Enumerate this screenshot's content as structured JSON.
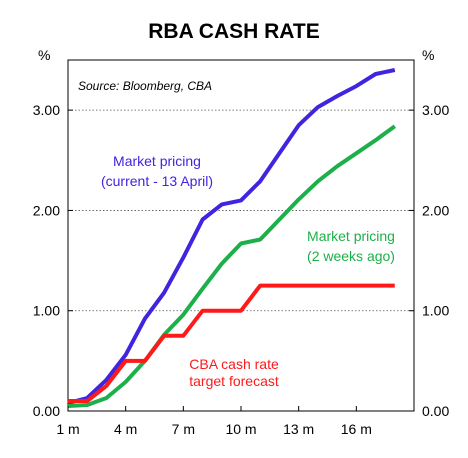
{
  "chart_data": {
    "type": "line",
    "title": "RBA CASH RATE",
    "source": "Source: Bloomberg, CBA",
    "y_unit_left": "%",
    "y_unit_right": "%",
    "ylim": [
      0,
      3.5
    ],
    "yticks": [
      0,
      1,
      2,
      3
    ],
    "ytick_labels": [
      "0.00",
      "1.00",
      "2.00",
      "3.00"
    ],
    "xlim": [
      1,
      19
    ],
    "xticks": [
      1,
      4,
      7,
      10,
      13,
      16
    ],
    "xtick_labels": [
      "1 m",
      "4 m",
      "7 m",
      "10 m",
      "13 m",
      "16 m"
    ],
    "grid": "horizontal dotted",
    "series": [
      {
        "name": "Market pricing (current - 13 April)",
        "color": "#3f25e0",
        "x": [
          1,
          2,
          3,
          4,
          5,
          6,
          7,
          8,
          9,
          10,
          11,
          12,
          13,
          14,
          15,
          16,
          17,
          18
        ],
        "values": [
          0.08,
          0.13,
          0.31,
          0.56,
          0.92,
          1.18,
          1.53,
          1.91,
          2.06,
          2.1,
          2.29,
          2.57,
          2.85,
          3.03,
          3.14,
          3.24,
          3.36,
          3.4
        ]
      },
      {
        "name": "Market pricing (2 weeks ago)",
        "color": "#1db04a",
        "x": [
          1,
          2,
          3,
          4,
          5,
          6,
          7,
          8,
          9,
          10,
          11,
          12,
          13,
          14,
          15,
          16,
          17,
          18
        ],
        "values": [
          0.05,
          0.06,
          0.13,
          0.29,
          0.5,
          0.76,
          0.96,
          1.22,
          1.47,
          1.67,
          1.71,
          1.91,
          2.11,
          2.29,
          2.44,
          2.57,
          2.7,
          2.84
        ]
      },
      {
        "name": "CBA cash rate target forecast",
        "color": "#ff1a1a",
        "x": [
          1,
          2,
          3,
          4,
          5,
          6,
          7,
          8,
          9,
          10,
          11,
          12,
          13,
          14,
          15,
          16,
          17,
          18
        ],
        "values": [
          0.1,
          0.1,
          0.25,
          0.5,
          0.5,
          0.75,
          0.75,
          1.0,
          1.0,
          1.0,
          1.25,
          1.25,
          1.25,
          1.25,
          1.25,
          1.25,
          1.25,
          1.25
        ]
      }
    ],
    "annotations": [
      {
        "lines": [
          "Market pricing",
          "(current - 13 April)"
        ],
        "color": "#3f25e0"
      },
      {
        "lines": [
          "Market pricing",
          "(2 weeks ago)"
        ],
        "color": "#1db04a"
      },
      {
        "lines": [
          "CBA cash rate",
          "target forecast"
        ],
        "color": "#ff1a1a"
      }
    ]
  }
}
